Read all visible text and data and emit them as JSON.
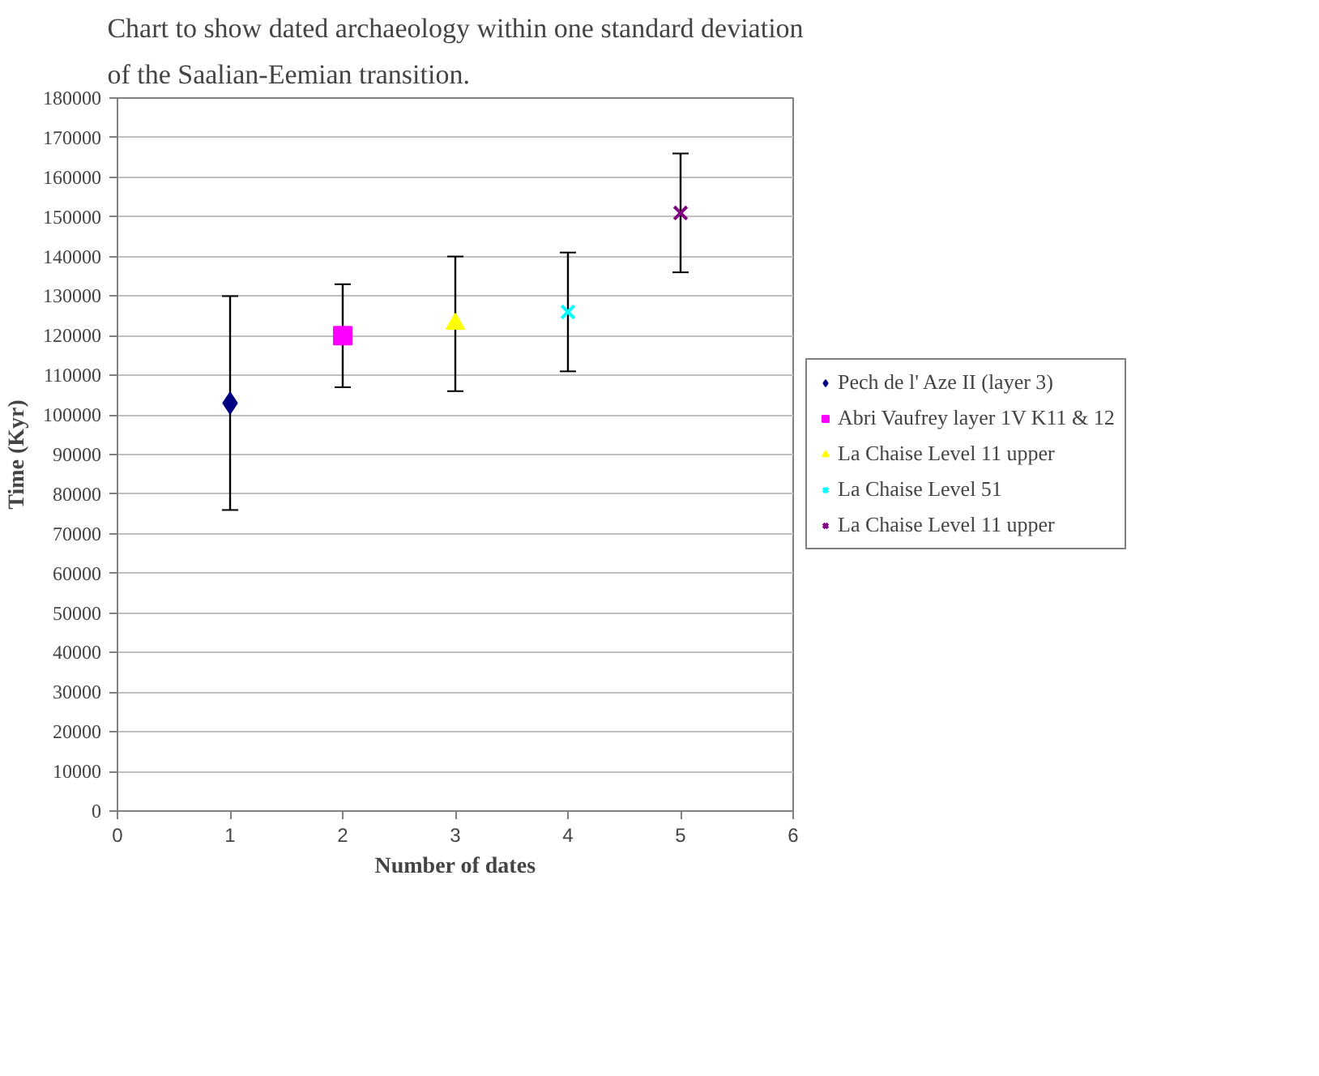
{
  "chart_data": {
    "type": "scatter",
    "title": "Chart to show dated archaeology within one standard deviation\nof the Saalian-Eemian transition.",
    "xlabel": "Number of dates",
    "ylabel": "Time (Kyr)",
    "series": [
      {
        "name": "Pech de l' Aze II (layer 3)",
        "color": "#000080",
        "marker": "diamond",
        "x": [
          1
        ],
        "values": [
          103000
        ],
        "errors": [
          27000
        ]
      },
      {
        "name": "Abri Vaufrey layer 1V K11 & 12",
        "color": "#ff00ff",
        "marker": "square",
        "x": [
          2
        ],
        "values": [
          120000
        ],
        "errors": [
          13000
        ]
      },
      {
        "name": "La Chaise Level 11 upper",
        "color": "#ffff00",
        "marker": "triangle",
        "x": [
          3
        ],
        "values": [
          123000
        ],
        "errors": [
          17000
        ]
      },
      {
        "name": "La Chaise Level 51",
        "color": "#00ffff",
        "marker": "cross",
        "x": [
          4
        ],
        "values": [
          126000
        ],
        "errors": [
          15000
        ]
      },
      {
        "name": "La Chaise Level 11 upper",
        "color": "#800080",
        "marker": "cross",
        "x": [
          5
        ],
        "values": [
          151000
        ],
        "errors": [
          15000
        ]
      }
    ],
    "xlim": [
      0,
      6
    ],
    "xticks": [
      0,
      1,
      2,
      3,
      4,
      5,
      6
    ],
    "ylim": [
      0,
      180000
    ],
    "yticks": [
      0,
      10000,
      20000,
      30000,
      40000,
      50000,
      60000,
      70000,
      80000,
      90000,
      100000,
      110000,
      120000,
      130000,
      140000,
      150000,
      160000,
      170000,
      180000
    ],
    "grid": "y",
    "legend": "right"
  }
}
